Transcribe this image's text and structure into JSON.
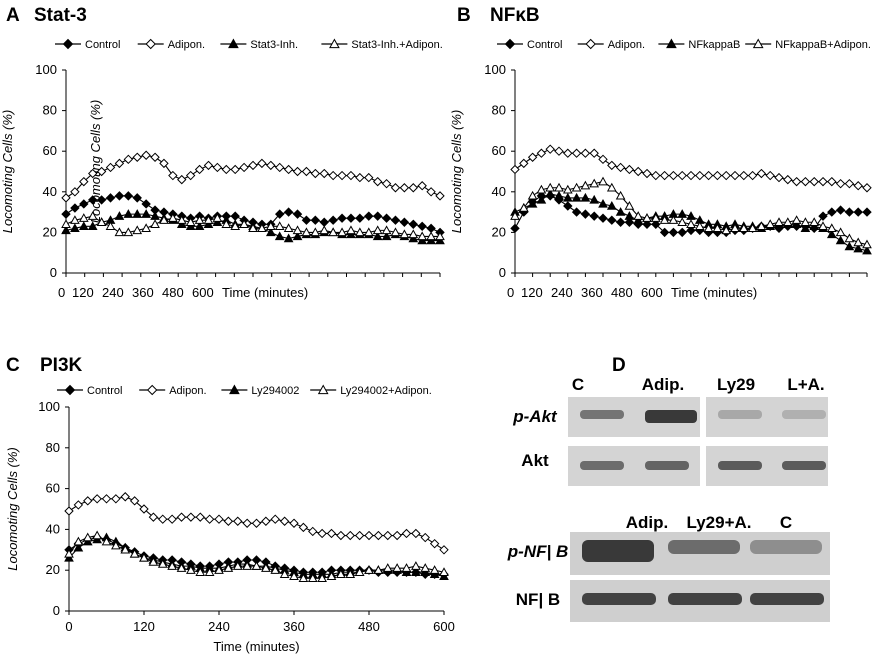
{
  "chart_data": [
    {
      "panel": "A",
      "type": "line",
      "title": "Stat-3",
      "ylabel": "Locomoting Cells (%)",
      "ylabel_overlay": "Locomoting Cells (%)",
      "xlabel": "Time (minutes)",
      "x_ticks": [
        "0",
        "120",
        "240",
        "360",
        "480",
        "600"
      ],
      "y_ticks": [
        "0",
        "20",
        "40",
        "60",
        "80",
        "100"
      ],
      "xlim": [
        0,
        1200
      ],
      "ylim": [
        0,
        100
      ],
      "legend_position": "top",
      "series": [
        {
          "name": "Control",
          "marker": "filled-diamond",
          "values": [
            29,
            32,
            34,
            36,
            36,
            37,
            38,
            38,
            37,
            34,
            31,
            30,
            29,
            28,
            27,
            28,
            27,
            28,
            28,
            28,
            26,
            25,
            24,
            24,
            29,
            30,
            29,
            26,
            26,
            25,
            26,
            27,
            27,
            27,
            28,
            28,
            27,
            26,
            25,
            24,
            23,
            22,
            20
          ]
        },
        {
          "name": "Adipon.",
          "marker": "open-diamond",
          "values": [
            37,
            40,
            45,
            49,
            50,
            52,
            54,
            56,
            57,
            58,
            57,
            54,
            48,
            46,
            48,
            51,
            53,
            52,
            51,
            51,
            52,
            53,
            54,
            53,
            52,
            51,
            50,
            50,
            49,
            49,
            48,
            48,
            48,
            47,
            47,
            45,
            44,
            42,
            42,
            42,
            43,
            40,
            38
          ]
        },
        {
          "name": "Stat3-Inh.",
          "marker": "filled-triangle",
          "values": [
            21,
            22,
            23,
            23,
            25,
            26,
            28,
            29,
            29,
            29,
            28,
            27,
            26,
            24,
            23,
            23,
            24,
            25,
            26,
            24,
            24,
            23,
            22,
            20,
            18,
            17,
            18,
            19,
            19,
            20,
            20,
            19,
            19,
            19,
            19,
            18,
            18,
            19,
            18,
            17,
            16,
            16,
            16
          ]
        },
        {
          "name": "Stat3-Inh.+Adipon.",
          "marker": "open-triangle",
          "values": [
            24,
            26,
            27,
            28,
            25,
            23,
            20,
            20,
            21,
            22,
            24,
            26,
            27,
            26,
            25,
            26,
            26,
            27,
            24,
            23,
            24,
            22,
            22,
            23,
            23,
            22,
            21,
            20,
            20,
            21,
            20,
            20,
            21,
            20,
            20,
            21,
            21,
            20,
            19,
            19,
            18,
            18,
            18
          ]
        }
      ]
    },
    {
      "panel": "B",
      "type": "line",
      "title": "NFκB",
      "ylabel": "Locomoting Cells (%)",
      "xlabel": "Time (minutes)",
      "x_ticks": [
        "0",
        "120",
        "240",
        "360",
        "480",
        "600"
      ],
      "y_ticks": [
        "0",
        "20",
        "40",
        "60",
        "80",
        "100"
      ],
      "xlim": [
        0,
        1200
      ],
      "ylim": [
        0,
        100
      ],
      "legend_position": "top",
      "series": [
        {
          "name": "Control",
          "marker": "filled-diamond",
          "values": [
            22,
            30,
            35,
            38,
            38,
            36,
            33,
            30,
            29,
            28,
            27,
            26,
            25,
            25,
            24,
            24,
            24,
            20,
            20,
            20,
            21,
            21,
            20,
            20,
            20,
            21,
            21,
            22,
            23,
            23,
            22,
            23,
            23,
            23,
            22,
            28,
            30,
            31,
            30,
            30,
            30
          ]
        },
        {
          "name": "Adipon.",
          "marker": "open-diamond",
          "values": [
            51,
            54,
            57,
            59,
            61,
            60,
            59,
            59,
            59,
            59,
            56,
            53,
            52,
            51,
            50,
            49,
            48,
            48,
            48,
            48,
            48,
            48,
            48,
            48,
            48,
            48,
            48,
            48,
            49,
            48,
            47,
            46,
            45,
            45,
            45,
            45,
            45,
            44,
            44,
            43,
            42
          ]
        },
        {
          "name": "NFkappaB",
          "marker": "filled-triangle",
          "values": [
            30,
            32,
            34,
            36,
            39,
            38,
            37,
            37,
            37,
            36,
            34,
            33,
            30,
            28,
            26,
            27,
            28,
            28,
            29,
            29,
            28,
            26,
            24,
            24,
            23,
            24,
            23,
            23,
            22,
            23,
            24,
            24,
            24,
            22,
            23,
            22,
            19,
            16,
            13,
            12,
            11
          ]
        },
        {
          "name": "NFkappaB+Adipon.",
          "marker": "open-triangle",
          "values": [
            28,
            32,
            38,
            41,
            42,
            42,
            41,
            42,
            43,
            44,
            45,
            42,
            38,
            33,
            28,
            27,
            27,
            26,
            26,
            25,
            24,
            23,
            22,
            22,
            21,
            22,
            22,
            22,
            23,
            24,
            25,
            25,
            26,
            25,
            25,
            23,
            22,
            20,
            17,
            15,
            14
          ]
        }
      ]
    },
    {
      "panel": "C",
      "type": "line",
      "title": "PI3K",
      "ylabel": "Locomoting Cells (%)",
      "xlabel": "Time (minutes)",
      "x_ticks": [
        "0",
        "120",
        "240",
        "360",
        "480",
        "600"
      ],
      "y_ticks": [
        "0",
        "20",
        "40",
        "60",
        "80",
        "100"
      ],
      "xlim": [
        0,
        600
      ],
      "ylim": [
        0,
        100
      ],
      "legend_position": "top",
      "series": [
        {
          "name": "Control",
          "marker": "filled-diamond",
          "x": [
            0,
            15,
            30,
            45,
            60,
            75,
            90,
            105,
            120,
            135,
            150,
            165,
            180,
            195,
            210,
            225,
            240,
            255,
            270,
            285,
            300,
            315,
            330,
            345,
            360,
            375,
            390,
            405,
            420,
            435,
            450,
            465,
            480,
            495,
            510,
            525,
            540,
            555,
            570,
            585,
            600
          ],
          "values": [
            30,
            33,
            35,
            36,
            35,
            33,
            31,
            29,
            27,
            26,
            25,
            25,
            24,
            23,
            22,
            22,
            23,
            24,
            24,
            25,
            25,
            24,
            22,
            21,
            20,
            19,
            19,
            19,
            20,
            20,
            20,
            20,
            20,
            19,
            19,
            19,
            19,
            19,
            18,
            18,
            18
          ]
        },
        {
          "name": "Adipon.",
          "marker": "open-diamond",
          "x": [
            0,
            15,
            30,
            45,
            60,
            75,
            90,
            105,
            120,
            135,
            150,
            165,
            180,
            195,
            210,
            225,
            240,
            255,
            270,
            285,
            300,
            315,
            330,
            345,
            360,
            375,
            390,
            405,
            420,
            435,
            450,
            465,
            480,
            495,
            510,
            525,
            540,
            555,
            570,
            585,
            600
          ],
          "values": [
            49,
            52,
            54,
            55,
            55,
            55,
            56,
            54,
            50,
            46,
            45,
            45,
            46,
            46,
            46,
            45,
            45,
            44,
            44,
            43,
            43,
            44,
            45,
            44,
            43,
            41,
            39,
            38,
            38,
            37,
            37,
            37,
            37,
            37,
            37,
            37,
            38,
            38,
            36,
            33,
            30
          ]
        },
        {
          "name": "Ly294002",
          "marker": "filled-triangle",
          "x": [
            0,
            15,
            30,
            45,
            60,
            75,
            90,
            105,
            120,
            135,
            150,
            165,
            180,
            195,
            210,
            225,
            240,
            255,
            270,
            285,
            300,
            315,
            330,
            345,
            360,
            375,
            390,
            405,
            420,
            435,
            450,
            465,
            480,
            495,
            510,
            525,
            540,
            555,
            570,
            585,
            600
          ],
          "values": [
            26,
            31,
            34,
            35,
            36,
            34,
            31,
            28,
            26,
            25,
            24,
            23,
            22,
            22,
            21,
            21,
            21,
            22,
            23,
            23,
            22,
            22,
            21,
            20,
            19,
            18,
            18,
            18,
            18,
            19,
            19,
            19,
            20,
            20,
            20,
            20,
            19,
            19,
            19,
            18,
            17
          ]
        },
        {
          "name": "Ly294002+Adipon.",
          "marker": "open-triangle",
          "x": [
            0,
            15,
            30,
            45,
            60,
            75,
            90,
            105,
            120,
            135,
            150,
            165,
            180,
            195,
            210,
            225,
            240,
            255,
            270,
            285,
            300,
            315,
            330,
            345,
            360,
            375,
            390,
            405,
            420,
            435,
            450,
            465,
            480,
            495,
            510,
            525,
            540,
            555,
            570,
            585,
            600
          ],
          "values": [
            28,
            34,
            36,
            37,
            34,
            32,
            30,
            28,
            26,
            24,
            23,
            22,
            21,
            20,
            19,
            19,
            20,
            21,
            22,
            22,
            22,
            21,
            20,
            18,
            17,
            16,
            16,
            16,
            17,
            18,
            18,
            19,
            20,
            20,
            21,
            21,
            21,
            22,
            21,
            20,
            19
          ]
        }
      ]
    }
  ],
  "blot": {
    "letter": "D",
    "top_headers": [
      "C",
      "Adip.",
      "Ly29",
      "L+A."
    ],
    "top_rows": [
      "p-Akt",
      "Akt"
    ],
    "bottom_headers": [
      "Adip.",
      "Ly29+A.",
      "C"
    ],
    "bottom_rows": [
      "p-NF| B",
      "NF| B"
    ],
    "band_intensity_pAkt": [
      0.55,
      0.9,
      0.25,
      0.2
    ],
    "band_intensity_Akt": [
      0.6,
      0.65,
      0.7,
      0.7
    ],
    "band_intensity_pNFkB": [
      0.9,
      0.6,
      0.4
    ],
    "band_intensity_NFkB": [
      0.85,
      0.85,
      0.85
    ]
  }
}
